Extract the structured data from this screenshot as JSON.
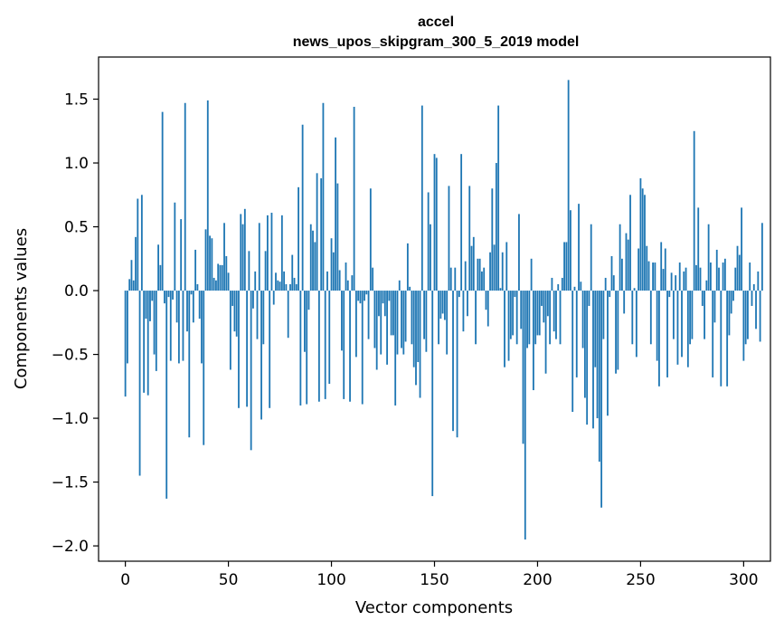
{
  "chart_data": {
    "type": "bar",
    "title": "accel",
    "subtitle": "news_upos_skipgram_300_5_2019 model",
    "xlabel": "Vector components",
    "ylabel": "Components values",
    "xlim": [
      -13,
      313
    ],
    "ylim": [
      -2.12,
      1.83
    ],
    "xticks": [
      0,
      50,
      100,
      150,
      200,
      250,
      300
    ],
    "yticks": [
      -2.0,
      -1.5,
      -1.0,
      -0.5,
      0.0,
      0.5,
      1.0,
      1.5
    ],
    "ytick_labels": [
      "−2.0",
      "−1.5",
      "−1.0",
      "−0.5",
      "0.0",
      "0.5",
      "1.0",
      "1.5"
    ],
    "bar_color": "#1f77b4",
    "values": [
      -0.83,
      -0.57,
      0.09,
      0.24,
      0.08,
      0.42,
      0.72,
      -1.45,
      0.75,
      -0.8,
      -0.22,
      -0.82,
      -0.24,
      -0.08,
      -0.5,
      -0.63,
      0.36,
      0.2,
      1.4,
      -0.1,
      -1.63,
      -0.05,
      -0.55,
      -0.07,
      0.69,
      -0.25,
      -0.57,
      0.56,
      -0.55,
      1.47,
      -0.32,
      -1.15,
      -0.03,
      -0.25,
      0.32,
      0.05,
      -0.22,
      -0.57,
      -1.21,
      0.48,
      1.49,
      0.43,
      0.41,
      0.1,
      0.08,
      0.21,
      0.2,
      0.2,
      0.53,
      0.27,
      0.14,
      -0.62,
      -0.12,
      -0.32,
      -0.36,
      -0.92,
      0.6,
      0.52,
      0.64,
      -0.91,
      0.31,
      -1.25,
      -0.14,
      0.15,
      -0.38,
      0.53,
      -1.01,
      -0.42,
      0.31,
      0.59,
      -0.92,
      0.61,
      -0.11,
      0.14,
      0.08,
      0.07,
      0.59,
      0.15,
      0.05,
      -0.37,
      0.05,
      0.28,
      0.1,
      0.05,
      0.81,
      -0.9,
      1.3,
      -0.48,
      -0.89,
      -0.15,
      0.52,
      0.47,
      0.38,
      0.92,
      -0.87,
      0.88,
      1.47,
      -0.85,
      0.15,
      -0.73,
      0.41,
      0.3,
      1.2,
      0.84,
      0.16,
      -0.47,
      -0.85,
      0.22,
      0.08,
      -0.87,
      0.12,
      1.44,
      -0.52,
      -0.08,
      -0.1,
      -0.89,
      -0.08,
      -0.03,
      -0.38,
      0.8,
      0.18,
      -0.45,
      -0.62,
      -0.2,
      -0.5,
      -0.1,
      -0.2,
      -0.58,
      -0.08,
      -0.35,
      -0.35,
      -0.9,
      -0.5,
      0.08,
      -0.45,
      -0.5,
      -0.4,
      0.37,
      0.03,
      -0.42,
      -0.6,
      -0.74,
      -0.56,
      -0.84,
      1.45,
      -0.38,
      -0.48,
      0.77,
      0.52,
      -1.61,
      1.07,
      1.04,
      -0.42,
      -0.22,
      -0.18,
      -0.23,
      -0.5,
      0.82,
      0.18,
      -1.1,
      0.18,
      -1.15,
      -0.05,
      1.07,
      -0.32,
      0.23,
      -0.2,
      0.82,
      0.35,
      0.42,
      -0.42,
      0.25,
      0.25,
      0.15,
      0.18,
      -0.15,
      -0.28,
      0.3,
      0.8,
      0.36,
      1.0,
      1.45,
      0.02,
      0.3,
      -0.6,
      0.38,
      -0.55,
      -0.38,
      -0.35,
      -0.05,
      -0.42,
      0.6,
      -0.3,
      -1.2,
      -1.95,
      -0.45,
      -0.42,
      0.25,
      -0.78,
      -0.42,
      -0.35,
      -0.35,
      -0.12,
      -0.25,
      -0.65,
      -0.2,
      -0.42,
      0.1,
      -0.32,
      -0.38,
      0.05,
      -0.42,
      0.1,
      0.38,
      0.38,
      1.65,
      0.63,
      -0.95,
      0.03,
      -0.68,
      0.68,
      0.07,
      -0.45,
      -0.84,
      -1.05,
      -0.12,
      0.52,
      -1.08,
      -0.6,
      -1.0,
      -1.34,
      -1.7,
      -0.38,
      0.1,
      -0.98,
      -0.05,
      0.27,
      0.12,
      -0.65,
      -0.62,
      0.52,
      0.25,
      -0.18,
      0.45,
      0.4,
      0.75,
      -0.42,
      0.02,
      -0.52,
      0.33,
      0.88,
      0.8,
      0.75,
      0.35,
      0.23,
      -0.42,
      0.22,
      0.22,
      -0.55,
      -0.75,
      0.38,
      0.17,
      0.33,
      -0.68,
      -0.05,
      0.14,
      -0.38,
      0.12,
      -0.58,
      0.22,
      -0.52,
      0.15,
      0.18,
      -0.6,
      -0.42,
      -0.38,
      1.25,
      0.2,
      0.65,
      0.18,
      -0.12,
      -0.38,
      0.08,
      0.52,
      0.22,
      -0.68,
      -0.25,
      0.32,
      0.18,
      -0.75,
      0.22,
      0.25,
      -0.75,
      -0.35,
      -0.18,
      -0.08,
      0.18,
      0.35,
      0.28,
      0.65,
      -0.55,
      -0.42,
      -0.38,
      0.22,
      -0.12,
      0.05,
      -0.3,
      0.15,
      -0.4,
      0.53
    ]
  }
}
